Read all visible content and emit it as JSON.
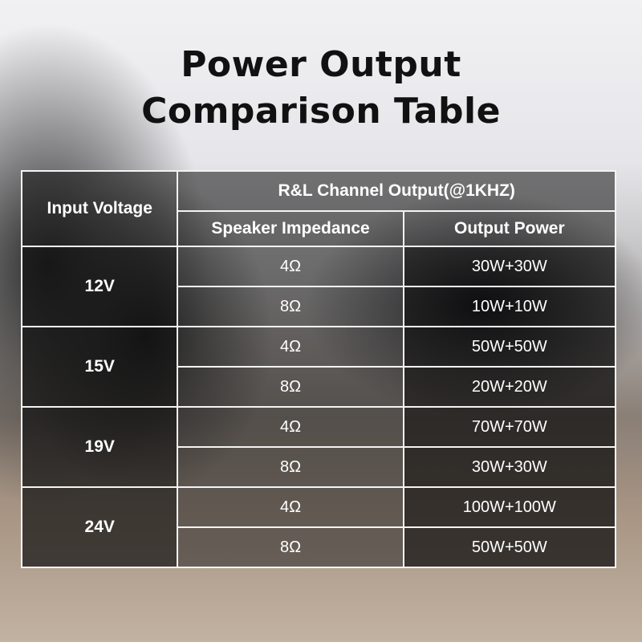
{
  "title": [
    "Power Output",
    "Comparison Table"
  ],
  "table": {
    "header": {
      "input_voltage": "Input Voltage",
      "group": "R&L Channel Output(@1KHZ)",
      "impedance": "Speaker Impedance",
      "power": "Output Power"
    },
    "rows": [
      {
        "voltage": "12V",
        "entries": [
          {
            "impedance": "4Ω",
            "power": "30W+30W"
          },
          {
            "impedance": "8Ω",
            "power": "10W+10W"
          }
        ]
      },
      {
        "voltage": "15V",
        "entries": [
          {
            "impedance": "4Ω",
            "power": "50W+50W"
          },
          {
            "impedance": "8Ω",
            "power": "20W+20W"
          }
        ]
      },
      {
        "voltage": "19V",
        "entries": [
          {
            "impedance": "4Ω",
            "power": "70W+70W"
          },
          {
            "impedance": "8Ω",
            "power": "30W+30W"
          }
        ]
      },
      {
        "voltage": "24V",
        "entries": [
          {
            "impedance": "4Ω",
            "power": "100W+100W"
          },
          {
            "impedance": "8Ω",
            "power": "50W+50W"
          }
        ]
      }
    ]
  }
}
